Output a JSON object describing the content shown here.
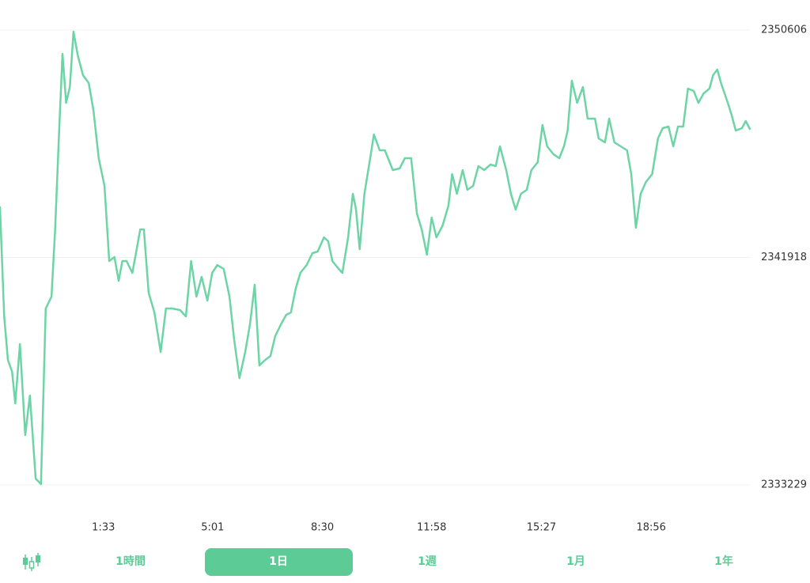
{
  "chart_data": {
    "type": "line",
    "color": "#6dd4a6",
    "grid": true,
    "x": [
      -104,
      -96,
      -89,
      -81,
      -75,
      -66,
      -56,
      -47,
      -36,
      -26,
      -17,
      -6,
      1,
      9,
      15,
      22,
      29,
      36,
      44,
      54,
      65,
      74,
      84,
      95,
      104,
      114,
      122,
      129,
      137,
      148,
      155,
      163,
      170,
      179,
      190,
      202,
      212,
      224,
      239,
      250,
      260,
      270,
      280,
      291,
      300,
      310,
      322,
      333,
      342,
      352,
      363,
      372,
      381,
      390,
      401,
      411,
      420,
      431,
      441,
      450,
      459,
      468,
      480,
      491,
      501,
      513,
      521,
      529,
      541,
      548,
      559,
      568,
      574,
      581,
      590,
      601,
      608,
      619,
      629,
      644,
      657,
      667,
      679,
      690,
      699,
      709,
      718,
      727,
      739,
      750,
      757,
      766,
      777,
      786,
      797,
      807,
      818,
      830,
      840,
      848,
      860,
      869,
      878,
      888,
      899,
      908,
      920,
      929,
      938,
      950,
      961,
      970,
      977,
      985,
      995,
      1006,
      1015,
      1029,
      1036,
      1048,
      1056,
      1066,
      1078,
      1090,
      1098,
      1107,
      1116,
      1126,
      1138,
      1149,
      1158,
      1169,
      1178,
      1187,
      1197,
      1206,
      1217,
      1226,
      1236,
      1247,
      1254,
      1262,
      1269,
      1282,
      1289,
      1297,
      1309,
      1316,
      1324
    ],
    "values": [
      2343837,
      2339666,
      2338004,
      2337551,
      2336342,
      2338609,
      2335133,
      2336644,
      2333471,
      2333260,
      2339969,
      2340422,
      2342991,
      2346919,
      2349699,
      2347826,
      2348430,
      2350546,
      2349639,
      2348883,
      2348581,
      2347524,
      2345710,
      2344653,
      2341782,
      2341933,
      2341026,
      2341782,
      2341782,
      2341328,
      2342084,
      2342991,
      2342991,
      2340573,
      2339817,
      2338306,
      2339969,
      2339969,
      2339908,
      2339666,
      2341782,
      2340422,
      2341177,
      2340271,
      2341328,
      2341631,
      2341480,
      2340422,
      2338760,
      2337309,
      2338306,
      2339364,
      2340875,
      2337793,
      2338004,
      2338155,
      2338911,
      2339364,
      2339727,
      2339817,
      2340724,
      2341328,
      2341631,
      2342084,
      2342144,
      2342688,
      2342537,
      2341782,
      2341480,
      2341328,
      2342688,
      2344350,
      2343746,
      2342235,
      2344350,
      2345710,
      2346617,
      2346013,
      2346013,
      2345257,
      2345317,
      2345710,
      2345710,
      2343595,
      2342991,
      2342024,
      2343444,
      2342688,
      2343142,
      2343897,
      2345106,
      2344350,
      2345257,
      2344502,
      2344653,
      2345408,
      2345257,
      2345469,
      2345408,
      2346164,
      2345257,
      2344350,
      2343746,
      2344350,
      2344502,
      2345257,
      2345559,
      2346980,
      2346164,
      2345861,
      2345710,
      2346164,
      2346768,
      2348672,
      2347826,
      2348430,
      2347221,
      2347221,
      2346466,
      2346315,
      2347221,
      2346315,
      2346164,
      2346013,
      2345106,
      2343051,
      2344350,
      2344804,
      2345106,
      2346466,
      2346859,
      2346919,
      2346164,
      2346919,
      2346919,
      2348370,
      2348279,
      2347826,
      2348188,
      2348370,
      2348883,
      2349095,
      2348581,
      2347826,
      2347372,
      2346768,
      2346859,
      2347131,
      2346828
    ],
    "xlim": [
      -104,
      1324
    ],
    "xticks": [
      {
        "value": 93,
        "label": "1:33"
      },
      {
        "value": 301,
        "label": "5:01"
      },
      {
        "value": 510,
        "label": "8:30"
      },
      {
        "value": 718,
        "label": "11:58"
      },
      {
        "value": 927,
        "label": "15:27"
      },
      {
        "value": 1136,
        "label": "18:56"
      }
    ],
    "ylim": [
      2333229,
      2350606
    ],
    "yticks": [
      2333229,
      2341918,
      2350606
    ]
  },
  "tabs": [
    "1時間",
    "1日",
    "1週",
    "1月",
    "1年"
  ],
  "selected_tab": 1
}
